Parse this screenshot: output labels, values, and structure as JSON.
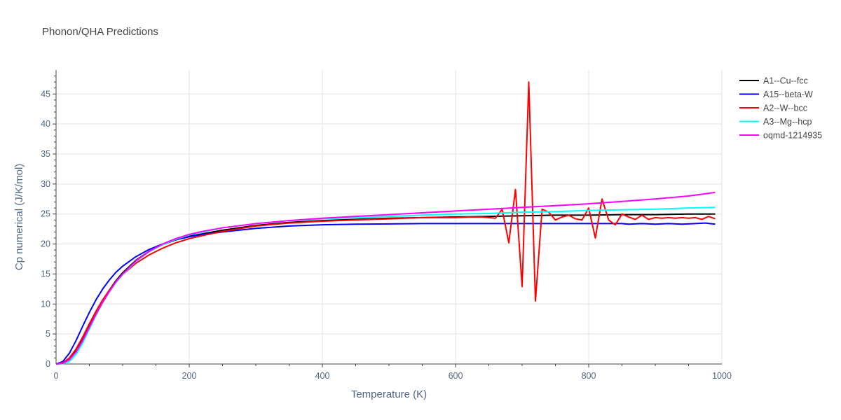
{
  "chart_data": {
    "type": "line",
    "title": "Phonon/QHA Predictions",
    "xlabel": "Temperature (K)",
    "ylabel": "Cp numerical (J/K/mol)",
    "xlim": [
      0,
      1000
    ],
    "ylim": [
      0,
      49
    ],
    "x_ticks": [
      0,
      200,
      400,
      600,
      800,
      1000
    ],
    "y_ticks": [
      0,
      5,
      10,
      15,
      20,
      25,
      30,
      35,
      40,
      45
    ],
    "grid": true,
    "legend_position": "right",
    "series": [
      {
        "name": "A1--Cu--fcc",
        "color": "#000000",
        "x": [
          0,
          10,
          20,
          30,
          40,
          50,
          60,
          70,
          80,
          90,
          100,
          120,
          140,
          160,
          180,
          200,
          220,
          250,
          300,
          350,
          400,
          450,
          500,
          550,
          600,
          650,
          700,
          750,
          800,
          850,
          900,
          950,
          990
        ],
        "y": [
          0,
          0.1,
          0.8,
          2.2,
          4.1,
          6.3,
          8.5,
          10.5,
          12.3,
          13.9,
          15.2,
          17.3,
          18.8,
          19.9,
          20.7,
          21.3,
          21.7,
          22.3,
          23.1,
          23.6,
          23.9,
          24.1,
          24.3,
          24.4,
          24.5,
          24.6,
          24.7,
          24.8,
          24.8,
          24.9,
          24.9,
          25.0,
          25.0
        ]
      },
      {
        "name": "A15--beta-W",
        "color": "#0000ff",
        "x": [
          0,
          10,
          20,
          30,
          40,
          50,
          60,
          70,
          80,
          90,
          100,
          120,
          140,
          160,
          180,
          200,
          220,
          250,
          300,
          350,
          400,
          450,
          500,
          550,
          600,
          650,
          700,
          750,
          800,
          850,
          860,
          880,
          900,
          920,
          940,
          960,
          975,
          990
        ],
        "y": [
          0,
          0.4,
          1.8,
          3.9,
          6.3,
          8.6,
          10.7,
          12.5,
          14.0,
          15.3,
          16.3,
          17.9,
          19.1,
          20.0,
          20.7,
          21.2,
          21.6,
          22.0,
          22.6,
          23.0,
          23.2,
          23.3,
          23.35,
          23.4,
          23.4,
          23.4,
          23.4,
          23.4,
          23.4,
          23.4,
          23.3,
          23.4,
          23.3,
          23.4,
          23.3,
          23.4,
          23.5,
          23.3
        ]
      },
      {
        "name": "A2--W--bcc",
        "color": "#ff0000",
        "x": [
          0,
          10,
          20,
          30,
          40,
          50,
          60,
          70,
          80,
          90,
          100,
          120,
          140,
          160,
          180,
          200,
          220,
          250,
          300,
          350,
          400,
          450,
          500,
          550,
          600,
          620,
          640,
          660,
          670,
          680,
          690,
          700,
          710,
          720,
          730,
          740,
          750,
          760,
          770,
          780,
          790,
          800,
          810,
          820,
          830,
          840,
          850,
          860,
          870,
          880,
          890,
          900,
          910,
          920,
          930,
          940,
          950,
          960,
          970,
          980,
          990
        ],
        "y": [
          0,
          0.2,
          1.0,
          2.5,
          4.5,
          6.7,
          8.8,
          10.7,
          12.3,
          13.7,
          14.9,
          16.8,
          18.2,
          19.3,
          20.2,
          20.9,
          21.4,
          22.1,
          23.0,
          23.5,
          23.8,
          24.0,
          24.2,
          24.4,
          24.4,
          24.5,
          24.5,
          24.3,
          25.8,
          20.2,
          29.1,
          12.9,
          47.0,
          10.5,
          25.8,
          25.3,
          24.0,
          24.5,
          24.8,
          24.2,
          24.0,
          26.0,
          21.0,
          27.5,
          24.0,
          23.2,
          25.0,
          24.5,
          24.1,
          24.8,
          24.1,
          24.4,
          24.3,
          24.4,
          24.3,
          24.4,
          24.3,
          24.4,
          24.1,
          24.6,
          24.2
        ]
      },
      {
        "name": "A3--Mg--hcp",
        "color": "#00ffff",
        "x": [
          0,
          10,
          20,
          30,
          40,
          50,
          60,
          70,
          80,
          90,
          100,
          120,
          140,
          160,
          180,
          200,
          220,
          250,
          300,
          350,
          400,
          450,
          500,
          550,
          600,
          650,
          700,
          750,
          800,
          850,
          900,
          950,
          990
        ],
        "y": [
          0,
          0.05,
          0.4,
          1.6,
          3.5,
          5.8,
          8.1,
          10.2,
          12.0,
          13.6,
          14.9,
          17.1,
          18.7,
          19.9,
          20.8,
          21.5,
          22.0,
          22.7,
          23.4,
          23.9,
          24.2,
          24.4,
          24.6,
          24.8,
          25.0,
          25.1,
          25.3,
          25.4,
          25.6,
          25.7,
          25.8,
          26.0,
          26.1
        ]
      },
      {
        "name": "oqmd-1214935",
        "color": "#ff00ff",
        "x": [
          0,
          10,
          20,
          30,
          40,
          50,
          60,
          70,
          80,
          90,
          100,
          120,
          140,
          160,
          180,
          200,
          220,
          250,
          300,
          350,
          400,
          450,
          500,
          550,
          600,
          650,
          700,
          750,
          800,
          850,
          900,
          950,
          990
        ],
        "y": [
          0,
          0.1,
          0.7,
          2.0,
          3.9,
          6.1,
          8.3,
          10.3,
          12.1,
          13.7,
          15.0,
          17.2,
          18.8,
          20.0,
          20.9,
          21.6,
          22.1,
          22.7,
          23.4,
          23.9,
          24.3,
          24.6,
          24.9,
          25.2,
          25.5,
          25.8,
          26.1,
          26.4,
          26.7,
          27.1,
          27.5,
          28.0,
          28.6
        ]
      }
    ]
  }
}
